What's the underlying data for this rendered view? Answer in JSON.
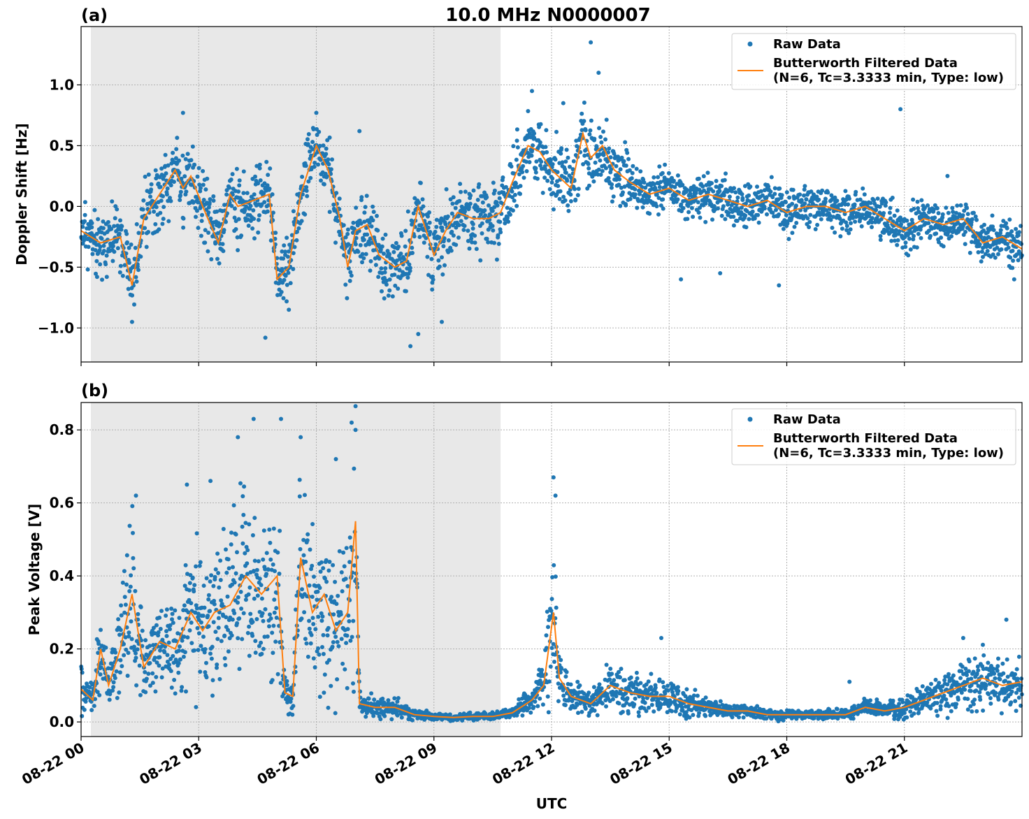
{
  "title": "10.0 MHz N0000007",
  "xlabel": "UTC",
  "x_ticks": [
    "08-22 00",
    "08-22 03",
    "08-22 06",
    "08-22 09",
    "08-22 12",
    "08-22 15",
    "08-22 18",
    "08-22 21"
  ],
  "x_tick_hours": [
    0,
    3,
    6,
    9,
    12,
    15,
    18,
    21
  ],
  "xlim_hours": [
    0,
    24
  ],
  "night_shading_hours": [
    0.25,
    10.7
  ],
  "colors": {
    "raw": "#1f77b4",
    "filtered": "#ff7f0e",
    "shade": "#e8e8e8",
    "grid": "#b0b0b0"
  },
  "legend": {
    "raw_label": "Raw Data",
    "filtered_label_line1": "Butterworth Filtered Data",
    "filtered_label_line2": "(N=6, Tc=3.3333 min, Type: low)"
  },
  "chart_data": [
    {
      "type": "scatter",
      "panel_label": "(a)",
      "ylabel": "Doppler Shift [Hz]",
      "ylim": [
        -1.28,
        1.48
      ],
      "y_ticks": [
        1.0,
        0.5,
        0.0,
        -0.5,
        -1.0
      ],
      "y_tick_labels": [
        "1.0",
        "0.5",
        "0.0",
        "−0.5",
        "−1.0"
      ],
      "grid": true,
      "legend_position": "top-right",
      "series": [
        {
          "name": "Butterworth Filtered Data",
          "x_hours": [
            0,
            0.5,
            1.0,
            1.3,
            1.6,
            2.0,
            2.4,
            2.6,
            2.8,
            3.1,
            3.5,
            3.8,
            4.0,
            4.4,
            4.8,
            5.0,
            5.3,
            5.6,
            6.0,
            6.3,
            6.6,
            6.8,
            7.0,
            7.3,
            7.6,
            8.0,
            8.3,
            8.6,
            9.0,
            9.3,
            9.6,
            10.0,
            10.4,
            10.7,
            11.0,
            11.4,
            11.7,
            12.0,
            12.5,
            12.8,
            13.0,
            13.3,
            13.6,
            14.0,
            14.5,
            15.0,
            15.5,
            16.0,
            16.5,
            17.0,
            17.5,
            18.0,
            18.5,
            19.0,
            19.5,
            20.0,
            20.5,
            21.0,
            21.5,
            22.0,
            22.5,
            23.0,
            23.5,
            24.0
          ],
          "y": [
            -0.2,
            -0.3,
            -0.25,
            -0.65,
            -0.1,
            0.1,
            0.3,
            0.15,
            0.25,
            0.0,
            -0.3,
            0.1,
            0.0,
            0.05,
            0.1,
            -0.6,
            -0.5,
            0.1,
            0.5,
            0.3,
            -0.1,
            -0.5,
            -0.2,
            -0.15,
            -0.4,
            -0.5,
            -0.45,
            0.0,
            -0.4,
            -0.2,
            -0.05,
            -0.1,
            -0.1,
            -0.05,
            0.2,
            0.5,
            0.45,
            0.3,
            0.15,
            0.6,
            0.4,
            0.5,
            0.3,
            0.2,
            0.1,
            0.15,
            0.05,
            0.1,
            0.05,
            0.0,
            0.05,
            -0.05,
            0.0,
            0.0,
            -0.05,
            0.0,
            -0.1,
            -0.2,
            -0.1,
            -0.15,
            -0.1,
            -0.3,
            -0.25,
            -0.35
          ]
        },
        {
          "name": "Raw Data",
          "x_hours": [
            1.3,
            4.7,
            5.3,
            8.4,
            8.6,
            13.0,
            13.2,
            20.9,
            11.5,
            12.3,
            15.3,
            16.3,
            17.8,
            23.8,
            6.0,
            7.1,
            2.6,
            0.4,
            9.2,
            22.1
          ],
          "y": [
            -0.95,
            -1.08,
            -0.85,
            -1.15,
            -1.05,
            1.35,
            1.1,
            0.8,
            0.95,
            0.85,
            -0.6,
            -0.55,
            -0.65,
            -0.6,
            0.77,
            0.62,
            0.77,
            -0.45,
            -0.95,
            0.25
          ]
        }
      ]
    },
    {
      "type": "scatter",
      "panel_label": "(b)",
      "ylabel": "Peak Voltage [V]",
      "ylim": [
        -0.04,
        0.875
      ],
      "y_ticks": [
        0.8,
        0.6,
        0.4,
        0.2,
        0.0
      ],
      "y_tick_labels": [
        "0.8",
        "0.6",
        "0.4",
        "0.2",
        "0.0"
      ],
      "grid": true,
      "legend_position": "top-right",
      "series": [
        {
          "name": "Butterworth Filtered Data",
          "x_hours": [
            0,
            0.3,
            0.5,
            0.7,
            1.0,
            1.3,
            1.6,
            2.0,
            2.4,
            2.8,
            3.1,
            3.4,
            3.8,
            4.2,
            4.6,
            5.0,
            5.2,
            5.4,
            5.6,
            5.9,
            6.2,
            6.5,
            6.8,
            7.0,
            7.1,
            7.5,
            8.0,
            8.5,
            9.0,
            9.5,
            10.0,
            10.5,
            11.0,
            11.5,
            11.8,
            12.05,
            12.2,
            12.5,
            13.0,
            13.5,
            14.0,
            14.5,
            15.0,
            15.5,
            16.0,
            16.5,
            17.0,
            17.5,
            18.0,
            18.5,
            19.0,
            19.5,
            20.0,
            20.5,
            21.0,
            21.5,
            22.0,
            22.5,
            23.0,
            23.5,
            24.0
          ],
          "y": [
            0.09,
            0.06,
            0.2,
            0.1,
            0.2,
            0.35,
            0.15,
            0.22,
            0.2,
            0.3,
            0.25,
            0.3,
            0.32,
            0.4,
            0.35,
            0.4,
            0.08,
            0.07,
            0.45,
            0.3,
            0.35,
            0.25,
            0.3,
            0.55,
            0.05,
            0.04,
            0.04,
            0.02,
            0.015,
            0.012,
            0.015,
            0.015,
            0.025,
            0.06,
            0.1,
            0.3,
            0.12,
            0.07,
            0.05,
            0.1,
            0.08,
            0.07,
            0.07,
            0.05,
            0.04,
            0.03,
            0.03,
            0.02,
            0.02,
            0.02,
            0.02,
            0.02,
            0.04,
            0.03,
            0.04,
            0.06,
            0.08,
            0.1,
            0.12,
            0.1,
            0.11
          ]
        },
        {
          "name": "Raw Data",
          "x_hours": [
            4.4,
            5.1,
            6.9,
            4.0,
            3.3,
            2.7,
            1.4,
            12.05,
            12.1,
            7.0,
            14.8,
            19.6,
            22.5,
            23.6,
            5.6,
            6.5
          ],
          "y": [
            0.83,
            0.83,
            0.82,
            0.78,
            0.66,
            0.65,
            0.62,
            0.67,
            0.62,
            0.8,
            0.23,
            0.11,
            0.23,
            0.28,
            0.78,
            0.72
          ]
        }
      ]
    }
  ]
}
